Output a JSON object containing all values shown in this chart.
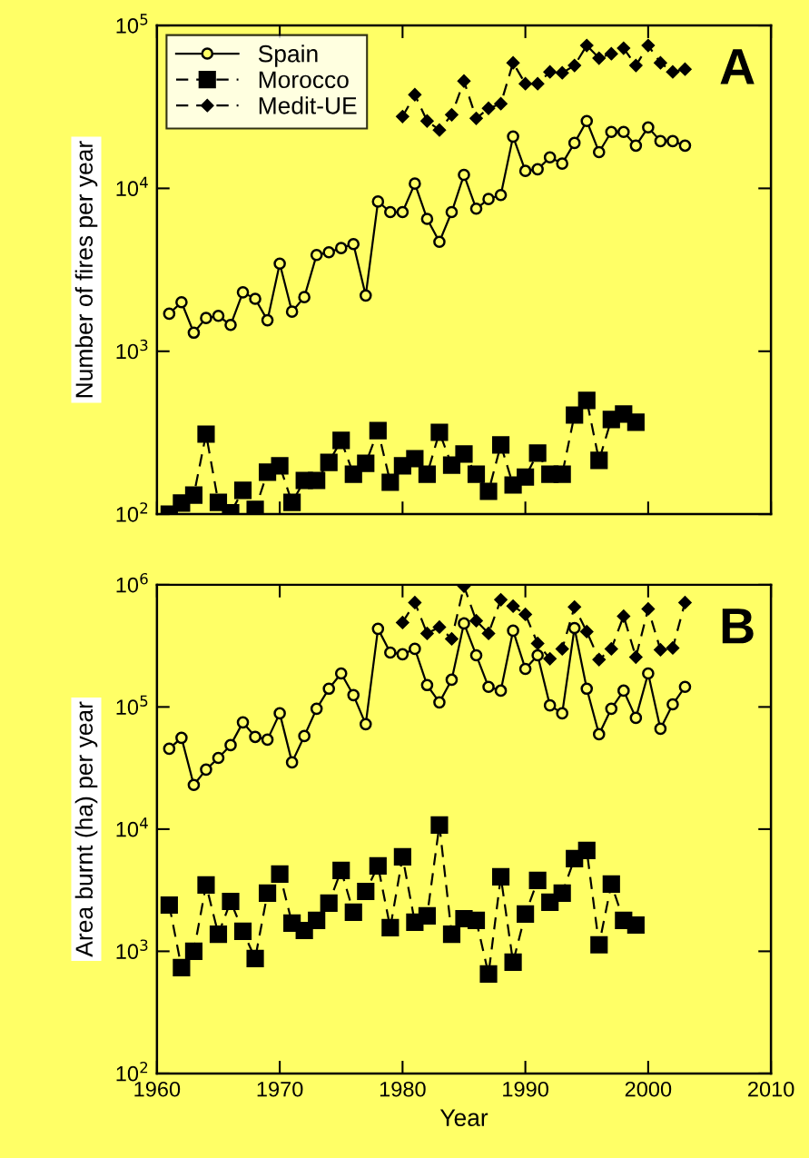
{
  "chart_data": [
    {
      "type": "line",
      "ylabel": "Number of fires per year",
      "annotations": [
        "A"
      ],
      "log": "y",
      "legend": "top left",
      "tick_labels": "y",
      "grid": false,
      "xlim": [
        1960,
        2010
      ],
      "xticks": [
        1960,
        1970,
        1980,
        1990,
        2000,
        2010
      ],
      "ylim": [
        100,
        100000
      ],
      "yticks": [
        {
          "value": 100,
          "label": "10$^{2}$"
        },
        {
          "value": 1000,
          "label": "10$^{3}$"
        },
        {
          "value": 10000,
          "label": "10$^{4}$"
        },
        {
          "value": 100000,
          "label": "10$^{5}$"
        }
      ],
      "series": [
        {
          "name": "Spain",
          "color": "#000000",
          "marker": "circle",
          "line_style": "solid",
          "x": [
            1961,
            1962,
            1963,
            1964,
            1965,
            1966,
            1967,
            1968,
            1969,
            1970,
            1971,
            1972,
            1973,
            1974,
            1975,
            1976,
            1977,
            1978,
            1979,
            1980,
            1981,
            1982,
            1983,
            1984,
            1985,
            1986,
            1987,
            1988,
            1989,
            1990,
            1991,
            1992,
            1993,
            1994,
            1995,
            1996,
            1997,
            1998,
            1999,
            2000,
            2001,
            2002,
            2003
          ],
          "values": [
            1700,
            2000,
            1300,
            1600,
            1650,
            1450,
            2300,
            2100,
            1550,
            3450,
            1750,
            2150,
            3900,
            4050,
            4300,
            4550,
            2200,
            8300,
            7150,
            7150,
            10700,
            6500,
            4700,
            7150,
            12100,
            7500,
            8600,
            9100,
            20800,
            12800,
            13100,
            15500,
            14200,
            19000,
            25900,
            16700,
            22200,
            22200,
            18300,
            23700,
            19500,
            19500,
            18300
          ]
        },
        {
          "name": "Morocco",
          "color": "#000000",
          "marker": "square",
          "line_style": "dashed",
          "x": [
            1961,
            1962,
            1963,
            1964,
            1965,
            1966,
            1967,
            1968,
            1969,
            1970,
            1971,
            1972,
            1973,
            1974,
            1975,
            1976,
            1977,
            1978,
            1979,
            1980,
            1981,
            1982,
            1983,
            1984,
            1985,
            1986,
            1987,
            1988,
            1989,
            1990,
            1991,
            1992,
            1993,
            1994,
            1995,
            1996,
            1997,
            1998,
            1999
          ],
          "values": [
            100,
            117,
            131,
            310,
            118,
            102,
            140,
            107,
            181,
            198,
            118,
            161,
            161,
            208,
            284,
            176,
            205,
            326,
            157,
            198,
            219,
            176,
            318,
            200,
            234,
            176,
            138,
            266,
            151,
            169,
            237,
            176,
            176,
            406,
            499,
            214,
            381,
            412,
            367
          ]
        },
        {
          "name": "Medit-UE",
          "color": "#000000",
          "marker": "diamond",
          "line_style": "dashed",
          "x": [
            1980,
            1981,
            1982,
            1983,
            1984,
            1985,
            1986,
            1987,
            1988,
            1989,
            1990,
            1991,
            1992,
            1993,
            1994,
            1995,
            1996,
            1997,
            1998,
            1999,
            2000,
            2001,
            2002,
            2003
          ],
          "values": [
            27600,
            37600,
            25900,
            22800,
            28300,
            45600,
            26900,
            31000,
            33100,
            59000,
            43900,
            43900,
            51900,
            51200,
            56800,
            75400,
            63000,
            67100,
            72500,
            56800,
            75400,
            59000,
            51900,
            53900
          ]
        }
      ]
    },
    {
      "type": "line",
      "xlabel": "Year",
      "ylabel": "Area burnt (ha) per year",
      "annotations": [
        "B"
      ],
      "log": "y",
      "grid": false,
      "xlim": [
        1960,
        2010
      ],
      "xticks": [
        1960,
        1970,
        1980,
        1990,
        2000,
        2010
      ],
      "ylim": [
        100,
        1000000
      ],
      "yticks": [
        {
          "value": 100,
          "label": "10$^{2}$"
        },
        {
          "value": 1000,
          "label": "10$^{3}$"
        },
        {
          "value": 10000,
          "label": "10$^{4}$"
        },
        {
          "value": 100000,
          "label": "10$^{5}$"
        },
        {
          "value": 1000000,
          "label": "10$^{6}$"
        }
      ],
      "series": [
        {
          "color": "#000000",
          "marker": "circle",
          "line_style": "solid",
          "x": [
            1961,
            1962,
            1963,
            1964,
            1965,
            1966,
            1967,
            1968,
            1969,
            1970,
            1971,
            1972,
            1973,
            1974,
            1975,
            1976,
            1977,
            1978,
            1979,
            1980,
            1981,
            1982,
            1983,
            1984,
            1985,
            1986,
            1987,
            1988,
            1989,
            1990,
            1991,
            1992,
            1993,
            1994,
            1995,
            1996,
            1997,
            1998,
            1999,
            2000,
            2001,
            2002,
            2003
          ],
          "values": [
            45500,
            55900,
            23000,
            30700,
            38300,
            48700,
            74800,
            56900,
            54000,
            88700,
            35200,
            57800,
            96700,
            141000,
            188000,
            125000,
            72300,
            436000,
            279000,
            270000,
            299000,
            151000,
            109000,
            167000,
            483000,
            265000,
            146000,
            136000,
            421000,
            205000,
            265000,
            103000,
            88700,
            443000,
            141000,
            59800,
            96700,
            136000,
            81400,
            188000,
            66300,
            105000,
            146000
          ]
        },
        {
          "color": "#000000",
          "marker": "square",
          "line_style": "dashed",
          "x": [
            1961,
            1962,
            1963,
            1964,
            1965,
            1966,
            1967,
            1968,
            1969,
            1970,
            1971,
            1972,
            1973,
            1974,
            1975,
            1976,
            1977,
            1978,
            1979,
            1980,
            1981,
            1982,
            1983,
            1984,
            1985,
            1986,
            1987,
            1988,
            1989,
            1990,
            1991,
            1992,
            1993,
            1994,
            1995,
            1996,
            1997,
            1998,
            1999
          ],
          "values": [
            2390,
            735,
            1000,
            3490,
            1380,
            2560,
            1460,
            873,
            2990,
            4290,
            1700,
            1480,
            1790,
            2480,
            4590,
            2090,
            3090,
            5000,
            1560,
            5930,
            1730,
            1950,
            10800,
            1380,
            1850,
            1790,
            652,
            4070,
            814,
            2020,
            3800,
            2520,
            2990,
            5730,
            6690,
            1130,
            3550,
            1790,
            1640
          ]
        },
        {
          "color": "#000000",
          "marker": "diamond",
          "line_style": "dashed",
          "x": [
            1980,
            1981,
            1982,
            1983,
            1984,
            1985,
            1986,
            1987,
            1988,
            1989,
            1990,
            1991,
            1992,
            1993,
            1994,
            1995,
            1996,
            1997,
            1998,
            1999,
            2000,
            2001,
            2002,
            2003
          ],
          "values": [
            491000,
            716000,
            400000,
            451000,
            361000,
            975000,
            508000,
            400000,
            754000,
            669000,
            573000,
            331000,
            248000,
            299000,
            658000,
            414000,
            244000,
            299000,
            554000,
            256000,
            635000,
            294000,
            304000,
            716000
          ]
        }
      ]
    }
  ]
}
